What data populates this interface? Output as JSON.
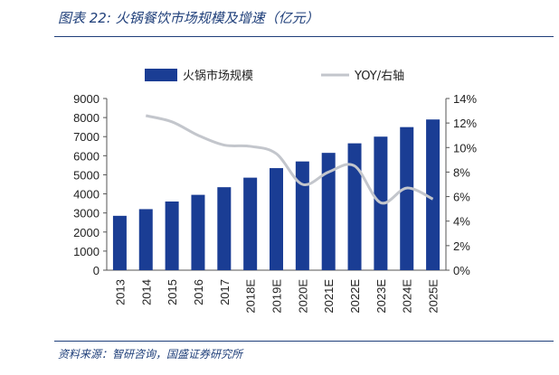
{
  "figure": {
    "title": "图表 22:  火锅餐饮市场规模及增速（亿元）",
    "source": "资料来源：智研咨询，国盛证券研究所"
  },
  "colors": {
    "bar": "#1a3d94",
    "line": "#c3c6cc",
    "accent": "#1f3f7a"
  },
  "chart_data": {
    "type": "bar",
    "categories": [
      "2013",
      "2014",
      "2015",
      "2016",
      "2017",
      "2018E",
      "2019E",
      "2020E",
      "2021E",
      "2022E",
      "2023E",
      "2024E",
      "2025E"
    ],
    "series": [
      {
        "name": "火锅市场规模",
        "type": "bar",
        "axis": "left",
        "values": [
          2850,
          3200,
          3600,
          3950,
          4350,
          4850,
          5350,
          5700,
          6150,
          6650,
          7000,
          7500,
          7900
        ]
      },
      {
        "name": "YOY/右轴",
        "type": "line",
        "axis": "right",
        "unit": "%",
        "values": [
          null,
          12.6,
          12.1,
          11.0,
          10.2,
          10.1,
          9.5,
          7.0,
          8.0,
          8.5,
          5.5,
          6.7,
          5.8
        ]
      }
    ],
    "y_left": {
      "ylim": [
        0,
        9000
      ],
      "ticks": [
        0,
        1000,
        2000,
        3000,
        4000,
        5000,
        6000,
        7000,
        8000,
        9000
      ]
    },
    "y_right": {
      "ylim": [
        0,
        14
      ],
      "ticks": [
        "0%",
        "2%",
        "4%",
        "6%",
        "8%",
        "10%",
        "12%",
        "14%"
      ]
    },
    "legend": "top",
    "grid": false
  }
}
